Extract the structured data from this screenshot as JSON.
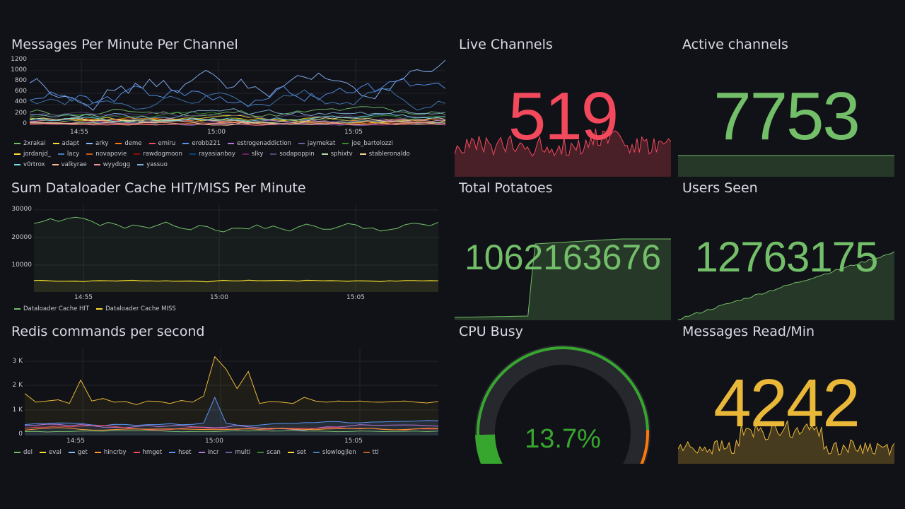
{
  "colors": {
    "green": "#73bf69",
    "red": "#f2495c",
    "yellow": "#fade2a",
    "gold": "#eab839",
    "background": "#111217",
    "grid": "#26272e",
    "text": "#c7c7d1"
  },
  "panels": {
    "messages": {
      "title": "Messages Per Minute Per Channel",
      "yticks": [
        "1200",
        "1000",
        "800",
        "600",
        "400",
        "200",
        "0"
      ],
      "xticks": [
        "14:55",
        "15:00",
        "15:05"
      ],
      "legend": [
        {
          "name": "2xrakai",
          "color": "#73bf69"
        },
        {
          "name": "adapt",
          "color": "#fade2a"
        },
        {
          "name": "arky",
          "color": "#8ab8ff"
        },
        {
          "name": "deme",
          "color": "#ff780a"
        },
        {
          "name": "emiru",
          "color": "#f2495c"
        },
        {
          "name": "erobb221",
          "color": "#5794f2"
        },
        {
          "name": "estrogenaddiction",
          "color": "#b877d9"
        },
        {
          "name": "jaymekat",
          "color": "#705da0"
        },
        {
          "name": "joe_bartolozzi",
          "color": "#37872d"
        },
        {
          "name": "jordanjd_",
          "color": "#fade2a"
        },
        {
          "name": "lacy",
          "color": "#447ebc"
        },
        {
          "name": "novapovie",
          "color": "#c15c17"
        },
        {
          "name": "rawdogmoon",
          "color": "#890f02"
        },
        {
          "name": "rayasianboy",
          "color": "#0a437c"
        },
        {
          "name": "slky",
          "color": "#6d1f62"
        },
        {
          "name": "sodapoppin",
          "color": "#584477"
        },
        {
          "name": "sphixtv",
          "color": "#b7dbab"
        },
        {
          "name": "stableronaldo",
          "color": "#f4d598"
        },
        {
          "name": "v0rtrox",
          "color": "#70dbed"
        },
        {
          "name": "valkyrae",
          "color": "#f9ba8f"
        },
        {
          "name": "wyydogg",
          "color": "#f29191"
        },
        {
          "name": "yassuo",
          "color": "#82b5d8"
        }
      ]
    },
    "cache": {
      "title": "Sum Dataloader Cache HIT/MISS Per Minute",
      "yticks": [
        "30000",
        "20000",
        "10000"
      ],
      "xticks": [
        "14:55",
        "15:00",
        "15:05"
      ],
      "legend": [
        {
          "name": "Dataloader Cache HIT",
          "color": "#73bf69"
        },
        {
          "name": "Dataloader Cache MISS",
          "color": "#fade2a"
        }
      ]
    },
    "redis": {
      "title": "Redis commands per second",
      "yticks": [
        "3 K",
        "2 K",
        "1 K",
        "0"
      ],
      "xticks": [
        "14:55",
        "15:00",
        "15:05"
      ],
      "legend": [
        {
          "name": "del",
          "color": "#73bf69"
        },
        {
          "name": "eval",
          "color": "#fade2a"
        },
        {
          "name": "get",
          "color": "#8ab8ff"
        },
        {
          "name": "hincrby",
          "color": "#ff9830"
        },
        {
          "name": "hmget",
          "color": "#f2495c"
        },
        {
          "name": "hset",
          "color": "#5794f2"
        },
        {
          "name": "incr",
          "color": "#b877d9"
        },
        {
          "name": "multi",
          "color": "#705da0"
        },
        {
          "name": "scan",
          "color": "#37872d"
        },
        {
          "name": "set",
          "color": "#fade2a"
        },
        {
          "name": "slowlog|len",
          "color": "#447ebc"
        },
        {
          "name": "ttl",
          "color": "#c15c17"
        }
      ]
    },
    "live_channels": {
      "title": "Live Channels",
      "value": "519"
    },
    "active_channels": {
      "title": "Active channels",
      "value": "7753"
    },
    "total_potatoes": {
      "title": "Total Potatoes",
      "value": "1062163676"
    },
    "users_seen": {
      "title": "Users Seen",
      "value": "12763175"
    },
    "cpu_busy": {
      "title": "CPU Busy",
      "value": "13.7%",
      "percent": 13.7
    },
    "messages_read": {
      "title": "Messages Read/Min",
      "value": "4242"
    }
  }
}
